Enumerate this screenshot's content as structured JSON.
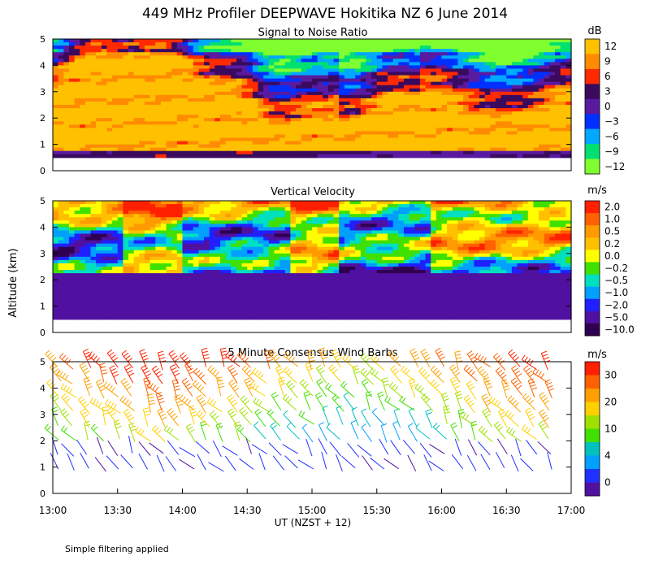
{
  "title": "449 MHz Profiler DEEPWAVE Hokitika NZ  6 June 2014",
  "ylabel": "Altitude (km)",
  "xlabel": "UT  (NZST + 12)",
  "footnote": "Simple filtering applied",
  "xticks": [
    "13:00",
    "13:30",
    "14:00",
    "14:30",
    "15:00",
    "15:30",
    "16:00",
    "16:30",
    "17:00"
  ],
  "chart_data": [
    {
      "type": "heatmap",
      "title": "Signal to Noise Ratio",
      "units": "dB",
      "x_range_ut": [
        "13:00",
        "17:00"
      ],
      "ylim": [
        0,
        5
      ],
      "yticks": [
        "0",
        "1",
        "2",
        "3",
        "4",
        "5"
      ],
      "colorbar": {
        "labels": [
          "12",
          "9",
          "6",
          "3",
          "0",
          "−3",
          "−6",
          "−9",
          "−12"
        ],
        "colors": [
          "#ffc000",
          "#ff8c00",
          "#ff2a00",
          "#3a0a5e",
          "#5a1aa0",
          "#0030ff",
          "#00a8ff",
          "#00e070",
          "#80ff30"
        ]
      }
    },
    {
      "type": "heatmap",
      "title": "Vertical Velocity",
      "units": "m/s",
      "x_range_ut": [
        "13:00",
        "17:00"
      ],
      "ylim": [
        0,
        5
      ],
      "yticks": [
        "0",
        "1",
        "2",
        "3",
        "4",
        "5"
      ],
      "colorbar": {
        "labels": [
          "2.0",
          "1.0",
          "0.5",
          "0.2",
          "0.0",
          "−0.2",
          "−0.5",
          "−1.0",
          "−2.0",
          "−5.0",
          "−10.0"
        ],
        "colors": [
          "#ff2000",
          "#ff6000",
          "#ff9a00",
          "#ffc000",
          "#ffff00",
          "#40e000",
          "#00e0c0",
          "#00a0ff",
          "#2020ff",
          "#5010a0",
          "#300050"
        ]
      }
    },
    {
      "type": "wind_barbs",
      "title": "5 Minute Consensus Wind Barbs",
      "units": "m/s",
      "x_range_ut": [
        "13:00",
        "17:00"
      ],
      "ylim": [
        0,
        5
      ],
      "yticks": [
        "0",
        "1",
        "2",
        "3",
        "4",
        "5"
      ],
      "colorbar": {
        "labels": [
          "30",
          "20",
          "10",
          "4",
          "0"
        ],
        "colors": [
          "#ff2000",
          "#ff6000",
          "#ffa000",
          "#ffd000",
          "#a0e000",
          "#40e000",
          "#00c0c0",
          "#00a0ff",
          "#2030ff",
          "#5010a0"
        ]
      }
    }
  ]
}
